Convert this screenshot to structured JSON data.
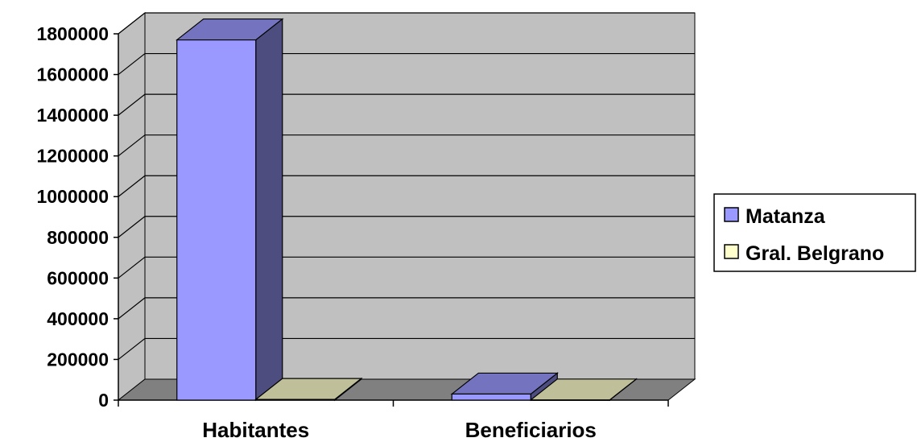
{
  "chart_data": {
    "type": "bar",
    "categories": [
      "Habitantes",
      "Beneficiarios"
    ],
    "series": [
      {
        "name": "Matanza",
        "values": [
          1770000,
          30000
        ],
        "color": "#9999ff"
      },
      {
        "name": "Gral. Belgrano",
        "values": [
          3500,
          800
        ],
        "color": "#ffffcc"
      }
    ],
    "ylim": [
      0,
      1800000
    ],
    "yticks": [
      0,
      200000,
      400000,
      600000,
      800000,
      1000000,
      1200000,
      1400000,
      1600000,
      1800000
    ],
    "grid": true,
    "legend_position": "right",
    "wall_color": "#c0c0c0",
    "floor_color": "#808080"
  }
}
